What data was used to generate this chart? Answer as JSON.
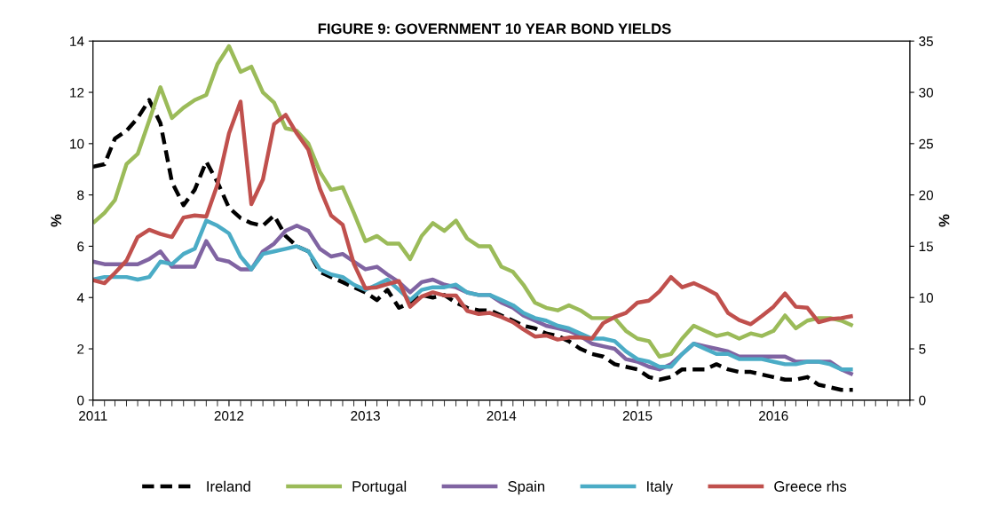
{
  "chart_data": {
    "type": "line",
    "title": "FIGURE 9: GOVERNMENT 10 YEAR BOND YIELDS",
    "ylabel": "%",
    "y2label": "%",
    "x": [
      "2011-01",
      "2011-02",
      "2011-03",
      "2011-04",
      "2011-05",
      "2011-06",
      "2011-07",
      "2011-08",
      "2011-09",
      "2011-10",
      "2011-11",
      "2011-12",
      "2012-01",
      "2012-02",
      "2012-03",
      "2012-04",
      "2012-05",
      "2012-06",
      "2012-07",
      "2012-08",
      "2012-09",
      "2012-10",
      "2012-11",
      "2012-12",
      "2013-01",
      "2013-02",
      "2013-03",
      "2013-04",
      "2013-05",
      "2013-06",
      "2013-07",
      "2013-08",
      "2013-09",
      "2013-10",
      "2013-11",
      "2013-12",
      "2014-01",
      "2014-02",
      "2014-03",
      "2014-04",
      "2014-05",
      "2014-06",
      "2014-07",
      "2014-08",
      "2014-09",
      "2014-10",
      "2014-11",
      "2014-12",
      "2015-01",
      "2015-02",
      "2015-03",
      "2015-04",
      "2015-05",
      "2015-06",
      "2015-07",
      "2015-08",
      "2015-09",
      "2015-10",
      "2015-11",
      "2015-12",
      "2016-01",
      "2016-02",
      "2016-03",
      "2016-04",
      "2016-05",
      "2016-06",
      "2016-07",
      "2016-08"
    ],
    "series": [
      {
        "name": "Ireland",
        "color": "#000000",
        "line_style": "dashed",
        "values": [
          9.1,
          9.2,
          10.2,
          10.5,
          11.0,
          11.7,
          10.8,
          8.5,
          7.6,
          8.2,
          9.3,
          8.5,
          7.5,
          7.1,
          6.9,
          6.8,
          7.2,
          6.4,
          6.0,
          5.8,
          5.0,
          4.8,
          4.6,
          4.4,
          4.2,
          3.9,
          4.3,
          3.6,
          3.8,
          4.1,
          4.0,
          4.1,
          3.8,
          3.6,
          3.5,
          3.5,
          3.3,
          3.1,
          2.9,
          2.8,
          2.6,
          2.5,
          2.3,
          2.0,
          1.8,
          1.7,
          1.4,
          1.3,
          1.2,
          0.9,
          0.8,
          0.9,
          1.2,
          1.2,
          1.2,
          1.4,
          1.2,
          1.1,
          1.1,
          1.0,
          0.9,
          0.8,
          0.8,
          0.9,
          0.6,
          0.5,
          0.4,
          0.4
        ]
      },
      {
        "name": "Portugal",
        "color": "#9bbb59",
        "values": [
          6.9,
          7.3,
          7.8,
          9.2,
          9.6,
          10.9,
          12.2,
          11.0,
          11.4,
          11.7,
          11.9,
          13.1,
          13.8,
          12.8,
          13.0,
          12.0,
          11.6,
          10.6,
          10.5,
          10.0,
          8.9,
          8.2,
          8.3,
          7.3,
          6.2,
          6.4,
          6.1,
          6.1,
          5.5,
          6.4,
          6.9,
          6.6,
          7.0,
          6.3,
          6.0,
          6.0,
          5.2,
          5.0,
          4.5,
          3.8,
          3.6,
          3.5,
          3.7,
          3.5,
          3.2,
          3.2,
          3.2,
          2.7,
          2.4,
          2.3,
          1.7,
          1.8,
          2.4,
          2.9,
          2.7,
          2.5,
          2.6,
          2.4,
          2.6,
          2.5,
          2.7,
          3.3,
          2.8,
          3.1,
          3.2,
          3.2,
          3.1,
          2.9
        ]
      },
      {
        "name": "Spain",
        "color": "#8064a2",
        "values": [
          5.4,
          5.3,
          5.3,
          5.3,
          5.3,
          5.5,
          5.8,
          5.2,
          5.2,
          5.2,
          6.2,
          5.5,
          5.4,
          5.1,
          5.1,
          5.8,
          6.1,
          6.6,
          6.8,
          6.6,
          5.9,
          5.6,
          5.7,
          5.4,
          5.1,
          5.2,
          4.9,
          4.6,
          4.2,
          4.6,
          4.7,
          4.5,
          4.4,
          4.2,
          4.1,
          4.1,
          3.8,
          3.6,
          3.3,
          3.1,
          2.9,
          2.8,
          2.7,
          2.5,
          2.2,
          2.1,
          2.0,
          1.6,
          1.5,
          1.3,
          1.2,
          1.4,
          1.8,
          2.2,
          2.1,
          2.0,
          1.9,
          1.7,
          1.7,
          1.7,
          1.7,
          1.7,
          1.5,
          1.5,
          1.5,
          1.5,
          1.2,
          1.0
        ]
      },
      {
        "name": "Italy",
        "color": "#4bacc6",
        "values": [
          4.7,
          4.8,
          4.8,
          4.8,
          4.7,
          4.8,
          5.4,
          5.3,
          5.7,
          5.9,
          7.0,
          6.8,
          6.5,
          5.6,
          5.1,
          5.7,
          5.8,
          5.9,
          6.0,
          5.8,
          5.1,
          4.9,
          4.8,
          4.5,
          4.3,
          4.5,
          4.7,
          4.3,
          3.9,
          4.3,
          4.4,
          4.4,
          4.5,
          4.2,
          4.1,
          4.1,
          3.9,
          3.7,
          3.4,
          3.2,
          3.1,
          2.9,
          2.8,
          2.6,
          2.4,
          2.4,
          2.3,
          1.9,
          1.6,
          1.5,
          1.3,
          1.3,
          1.8,
          2.2,
          2.0,
          1.8,
          1.8,
          1.6,
          1.6,
          1.6,
          1.5,
          1.4,
          1.4,
          1.5,
          1.5,
          1.4,
          1.2,
          1.2
        ]
      },
      {
        "name": "Greece rhs",
        "color": "#c0504d",
        "axis": "y2",
        "values": [
          11.7,
          11.4,
          12.4,
          13.6,
          15.9,
          16.6,
          16.2,
          15.9,
          17.8,
          18.0,
          17.9,
          21.0,
          26.0,
          29.1,
          19.1,
          21.5,
          26.9,
          27.8,
          26.0,
          24.4,
          20.6,
          18.0,
          17.1,
          13.3,
          10.9,
          11.0,
          11.3,
          11.6,
          9.1,
          10.1,
          10.5,
          10.2,
          10.2,
          8.7,
          8.4,
          8.5,
          8.1,
          7.6,
          6.9,
          6.2,
          6.3,
          5.9,
          6.1,
          6.1,
          6.0,
          7.5,
          8.1,
          8.5,
          9.5,
          9.7,
          10.6,
          12.0,
          11.0,
          11.4,
          10.9,
          10.3,
          8.5,
          7.8,
          7.4,
          8.2,
          9.1,
          10.4,
          9.1,
          9.0,
          7.6,
          7.9,
          8.0,
          8.2
        ]
      }
    ],
    "xlim": [
      "2011",
      "2017"
    ],
    "xticks": [
      "2011",
      "2012",
      "2013",
      "2014",
      "2015",
      "2016"
    ],
    "ylim": [
      0,
      14
    ],
    "yticks": [
      0,
      2,
      4,
      6,
      8,
      10,
      12,
      14
    ],
    "y2lim": [
      0,
      35
    ],
    "y2ticks": [
      0,
      5,
      10,
      15,
      20,
      25,
      30,
      35
    ],
    "grid": false,
    "legend": "bottom",
    "marker": "none",
    "line_style": "solid"
  }
}
